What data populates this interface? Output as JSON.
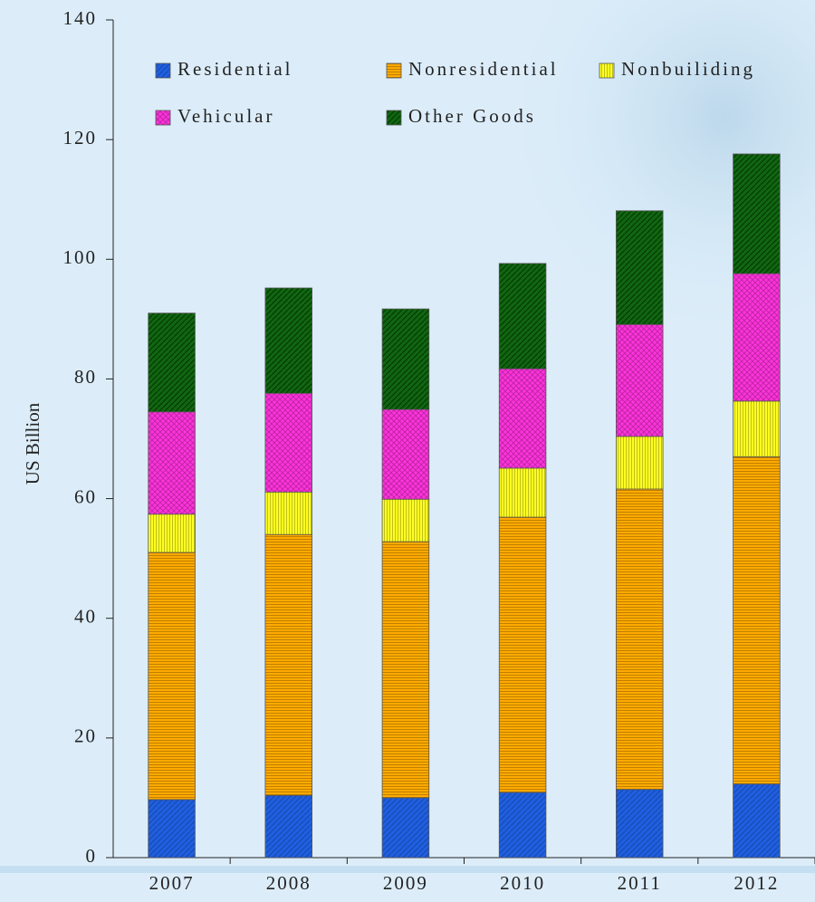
{
  "chart_data": {
    "type": "stacked_bar",
    "y_label": "US Billion",
    "categories": [
      "2007",
      "2008",
      "2009",
      "2010",
      "2011",
      "2012"
    ],
    "series": [
      {
        "name": "Residential",
        "color": "#1f5fe0",
        "values": [
          9.7,
          10.4,
          10.0,
          10.9,
          11.4,
          12.3
        ]
      },
      {
        "name": "Nonresidential",
        "color": "#ffaa00",
        "values": [
          41.3,
          43.6,
          42.8,
          46.0,
          50.2,
          54.7
        ]
      },
      {
        "name": "Nonbuiliding",
        "color": "#ffff22",
        "values": [
          6.4,
          7.1,
          7.1,
          8.2,
          8.8,
          9.3
        ]
      },
      {
        "name": "Vehicular",
        "color": "#ff33dd",
        "values": [
          17.1,
          16.5,
          15.0,
          16.6,
          18.7,
          21.3
        ]
      },
      {
        "name": "Other Goods",
        "color": "#116611",
        "values": [
          16.5,
          17.6,
          16.8,
          17.6,
          19.0,
          20.0
        ]
      }
    ],
    "ylim": [
      0,
      140
    ],
    "yticks": [
      0,
      20,
      40,
      60,
      80,
      100,
      120,
      140
    ]
  }
}
